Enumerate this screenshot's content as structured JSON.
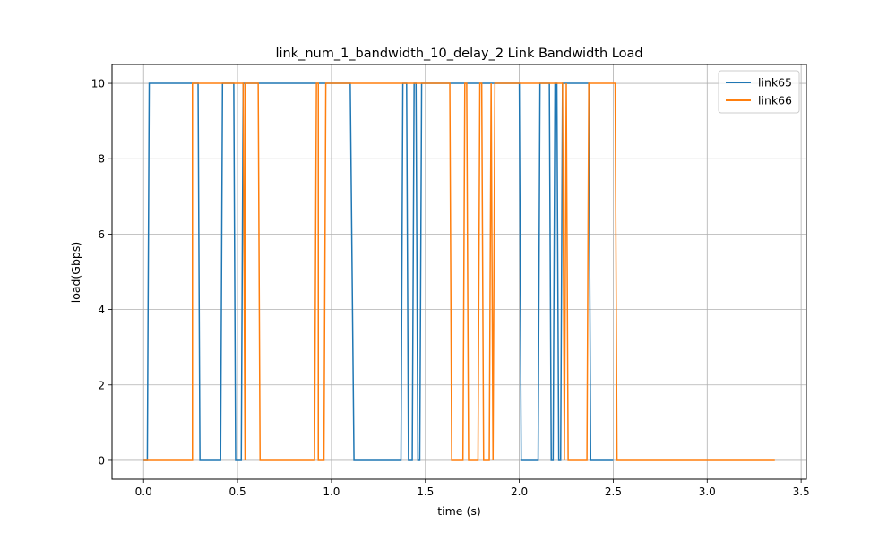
{
  "chart_data": {
    "type": "line",
    "title": "link_num_1_bandwidth_10_delay_2 Link Bandwidth Load",
    "xlabel": "time (s)",
    "ylabel": "load(Gbps)",
    "xlim": [
      -0.168,
      3.528
    ],
    "ylim": [
      -0.5,
      10.5
    ],
    "xticks": [
      0.0,
      0.5,
      1.0,
      1.5,
      2.0,
      2.5,
      3.0,
      3.5
    ],
    "xtick_labels": [
      "0.0",
      "0.5",
      "1.0",
      "1.5",
      "2.0",
      "2.5",
      "3.0",
      "3.5"
    ],
    "yticks": [
      0,
      2,
      4,
      6,
      8,
      10
    ],
    "ytick_labels": [
      "0",
      "2",
      "4",
      "6",
      "8",
      "10"
    ],
    "grid": true,
    "legend_position": "top-right",
    "series": [
      {
        "name": "link65",
        "color": "#1f77b4",
        "x": [
          0,
          0.02,
          0.03,
          0.29,
          0.3,
          0.41,
          0.42,
          0.48,
          0.49,
          0.52,
          0.53,
          0.53,
          0.54,
          0.98,
          0.99,
          1.1,
          1.12,
          1.37,
          1.38,
          1.4,
          1.41,
          1.43,
          1.44,
          1.45,
          1.46,
          1.47,
          1.48,
          1.49,
          1.5,
          2.0,
          2.01,
          2.1,
          2.11,
          2.16,
          2.17,
          2.18,
          2.19,
          2.2,
          2.21,
          2.22,
          2.23,
          2.37,
          2.38,
          2.5
        ],
        "y": [
          0,
          0,
          10,
          10,
          0,
          0,
          10,
          10,
          0,
          0,
          10,
          10,
          10,
          10,
          10,
          10,
          0,
          0,
          10,
          10,
          0,
          0,
          10,
          10,
          0,
          0,
          10,
          10,
          10,
          10,
          0,
          0,
          10,
          10,
          0,
          0,
          10,
          10,
          0,
          0,
          10,
          10,
          0,
          0
        ]
      },
      {
        "name": "link66",
        "color": "#ff7f0e",
        "x": [
          0,
          0.26,
          0.26,
          0.53,
          0.54,
          0.54,
          0.61,
          0.62,
          0.91,
          0.92,
          0.93,
          0.93,
          0.96,
          0.97,
          1.03,
          1.04,
          1.63,
          1.64,
          1.7,
          1.71,
          1.72,
          1.73,
          1.78,
          1.79,
          1.8,
          1.81,
          1.84,
          1.85,
          1.86,
          1.87,
          1.88,
          1.89,
          2.23,
          2.24,
          2.25,
          2.26,
          2.36,
          2.37,
          2.51,
          2.52,
          3.36
        ],
        "y": [
          0,
          0,
          10,
          10,
          0,
          10,
          10,
          0,
          0,
          10,
          10,
          0,
          0,
          10,
          10,
          10,
          10,
          0,
          0,
          10,
          10,
          0,
          0,
          10,
          10,
          0,
          0,
          10,
          0,
          10,
          10,
          10,
          10,
          0,
          10,
          0,
          0,
          10,
          10,
          0,
          0
        ]
      }
    ]
  }
}
